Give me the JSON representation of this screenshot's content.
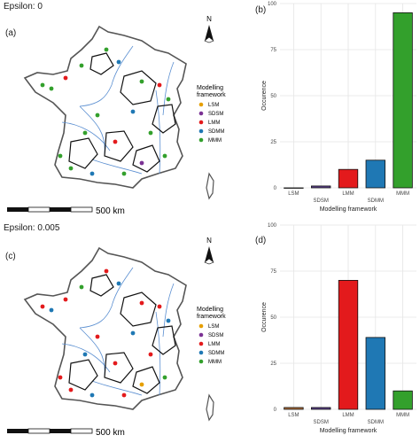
{
  "panels_top": {
    "epsilon_label": "Epsilon: 0",
    "map_letter": "(a)",
    "chart_letter": "(b)"
  },
  "panels_bottom": {
    "epsilon_label": "Epsilon: 0.005",
    "map_letter": "(c)",
    "chart_letter": "(d)"
  },
  "map": {
    "north_label": "N",
    "scalebar_label": "500 km",
    "legend_title_line1": "Modelling",
    "legend_title_line2": "framework",
    "legend": [
      {
        "label": "LSM",
        "color": "#E69F00"
      },
      {
        "label": "SDSM",
        "color": "#7B3294"
      },
      {
        "label": "LMM",
        "color": "#E31A1C"
      },
      {
        "label": "SDMM",
        "color": "#1F78B4"
      },
      {
        "label": "MMM",
        "color": "#33A02C"
      }
    ]
  },
  "colors": {
    "LSM": "#B5713A",
    "SDSM": "#5B3F8C",
    "LMM": "#E31A1C",
    "SDMM": "#1F78B4",
    "MMM": "#33A02C",
    "river": "#5B8FD1",
    "grid": "#E5E5E5"
  },
  "chart_data": [
    {
      "type": "bar",
      "categories": [
        "LSM",
        "SDSM",
        "LMM",
        "SDMM",
        "MMM"
      ],
      "values": [
        0,
        1,
        10,
        15,
        95
      ],
      "xlabel": "Modelling framework",
      "ylabel": "Occurence",
      "ylim": [
        0,
        100
      ],
      "yticks": [
        0,
        25,
        50,
        75,
        100
      ],
      "grid": true
    },
    {
      "type": "bar",
      "categories": [
        "LSM",
        "SDSM",
        "LMM",
        "SDMM",
        "MMM"
      ],
      "values": [
        1,
        1,
        70,
        39,
        10
      ],
      "xlabel": "Modelling framework",
      "ylabel": "Occurence",
      "ylim": [
        0,
        100
      ],
      "yticks": [
        0,
        25,
        50,
        75,
        100
      ],
      "grid": true
    }
  ]
}
